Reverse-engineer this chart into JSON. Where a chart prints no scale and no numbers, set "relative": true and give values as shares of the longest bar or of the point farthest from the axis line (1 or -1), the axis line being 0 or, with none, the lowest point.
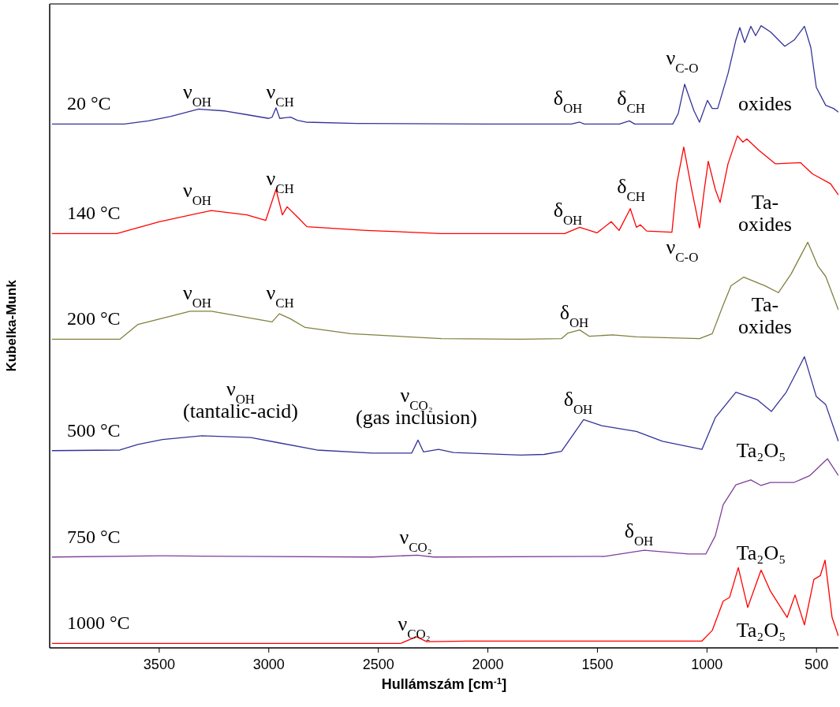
{
  "chart_data": {
    "type": "line",
    "relative": true,
    "xlabel": "Hullámszám [cm$^{-1}$]",
    "ylabel": "Kubelka-Munk",
    "xlim": [
      4000,
      400
    ],
    "xticks": [
      3500,
      3000,
      2500,
      2000,
      1500,
      1000,
      500
    ],
    "grid": false,
    "legend": false,
    "marker": "none",
    "line_style": "solid",
    "series": [
      {
        "name": "20 °C",
        "color": "#333399",
        "x": [
          3990,
          3660,
          3550,
          3450,
          3320,
          3200,
          3100,
          3000,
          2985,
          2967,
          2950,
          2925,
          2900,
          2870,
          2830,
          2600,
          2000,
          1620,
          1581,
          1560,
          1400,
          1354,
          1330,
          1156,
          1131,
          1102,
          1059,
          1034,
          998,
          976,
          951,
          904,
          868,
          850,
          828,
          800,
          778,
          753,
          710,
          645,
          602,
          555,
          526,
          501,
          458,
          422,
          400
        ],
        "values": [
          0.842,
          0.842,
          0.847,
          0.854,
          0.866,
          0.863,
          0.857,
          0.851,
          0.853,
          0.868,
          0.851,
          0.852,
          0.853,
          0.848,
          0.845,
          0.843,
          0.842,
          0.842,
          0.845,
          0.842,
          0.842,
          0.847,
          0.842,
          0.842,
          0.859,
          0.906,
          0.863,
          0.845,
          0.88,
          0.867,
          0.867,
          0.923,
          0.977,
          0.997,
          0.973,
          0.999,
          0.984,
          1.0,
          0.99,
          0.967,
          0.977,
          0.999,
          0.965,
          0.901,
          0.872,
          0.867,
          0.861
        ]
      },
      {
        "name": "140 °C",
        "color": "#ff0000",
        "x": [
          3990,
          3694,
          3500,
          3262,
          3100,
          3014,
          2967,
          2938,
          2916,
          2862,
          2826,
          2556,
          2211,
          1650,
          1581,
          1502,
          1437,
          1401,
          1350,
          1322,
          1304,
          1275,
          1160,
          1138,
          1106,
          1070,
          1034,
          1012,
          994,
          962,
          940,
          904,
          861,
          836,
          818,
          764,
          688,
          573,
          519,
          436,
          400
        ],
        "values": [
          0.666,
          0.666,
          0.685,
          0.703,
          0.696,
          0.687,
          0.737,
          0.696,
          0.709,
          0.69,
          0.677,
          0.671,
          0.666,
          0.666,
          0.676,
          0.667,
          0.685,
          0.671,
          0.706,
          0.676,
          0.68,
          0.67,
          0.668,
          0.746,
          0.805,
          0.737,
          0.675,
          0.737,
          0.782,
          0.737,
          0.716,
          0.778,
          0.823,
          0.813,
          0.818,
          0.8,
          0.778,
          0.78,
          0.762,
          0.746,
          0.728
        ]
      },
      {
        "name": "200 °C",
        "color": "#808040",
        "x": [
          3990,
          3680,
          3597,
          3359,
          3262,
          2985,
          2952,
          2902,
          2834,
          2625,
          2211,
          1851,
          1664,
          1635,
          1581,
          1538,
          1430,
          1322,
          1034,
          976,
          926,
          890,
          832,
          735,
          674,
          616,
          540,
          494,
          458,
          400
        ],
        "values": [
          0.496,
          0.496,
          0.52,
          0.541,
          0.541,
          0.524,
          0.537,
          0.529,
          0.515,
          0.505,
          0.497,
          0.496,
          0.497,
          0.506,
          0.511,
          0.501,
          0.503,
          0.5,
          0.497,
          0.505,
          0.551,
          0.582,
          0.596,
          0.582,
          0.571,
          0.601,
          0.652,
          0.614,
          0.597,
          0.543
        ]
      },
      {
        "name": "500 °C",
        "color": "#333399",
        "x": [
          3990,
          3680,
          3597,
          3485,
          3305,
          3082,
          2960,
          2780,
          2528,
          2348,
          2319,
          2294,
          2225,
          2157,
          1851,
          1743,
          1664,
          1563,
          1480,
          1322,
          1203,
          1023,
          962,
          868,
          771,
          706,
          638,
          555,
          501,
          458,
          400
        ],
        "values": [
          0.317,
          0.318,
          0.327,
          0.335,
          0.341,
          0.338,
          0.33,
          0.318,
          0.313,
          0.313,
          0.334,
          0.315,
          0.319,
          0.314,
          0.31,
          0.311,
          0.316,
          0.367,
          0.357,
          0.348,
          0.332,
          0.319,
          0.37,
          0.411,
          0.399,
          0.38,
          0.411,
          0.468,
          0.404,
          0.391,
          0.332
        ]
      },
      {
        "name": "750 °C",
        "color": "#7f3f98",
        "x": [
          3990,
          3485,
          3140,
          2528,
          2322,
          2247,
          1466,
          1286,
          1084,
          1005,
          962,
          926,
          868,
          800,
          753,
          710,
          602,
          530,
          450,
          400
        ],
        "values": [
          0.146,
          0.148,
          0.147,
          0.146,
          0.149,
          0.146,
          0.147,
          0.157,
          0.151,
          0.151,
          0.18,
          0.23,
          0.262,
          0.27,
          0.261,
          0.266,
          0.266,
          0.277,
          0.304,
          0.277
        ]
      },
      {
        "name": "1000 °C",
        "color": "#ff0000",
        "x": [
          3990,
          2400,
          2326,
          2279,
          2099,
          1934,
          1023,
          976,
          926,
          897,
          857,
          814,
          753,
          710,
          634,
          598,
          555,
          512,
          483,
          461,
          429,
          400
        ],
        "values": [
          0.007,
          0.007,
          0.018,
          0.01,
          0.011,
          0.011,
          0.011,
          0.028,
          0.075,
          0.081,
          0.129,
          0.065,
          0.125,
          0.091,
          0.049,
          0.085,
          0.037,
          0.11,
          0.116,
          0.141,
          0.049,
          0.019
        ]
      }
    ],
    "annotations": [
      "ν$_{OH}$",
      "ν$_{CH}$",
      "δ$_{OH}$",
      "δ$_{CH}$",
      "ν$_{C-O}$",
      "oxides",
      "ν$_{OH}$",
      "ν$_{CH}$",
      "δ$_{OH}$",
      "δ$_{CH}$",
      "ν$_{C-O}$",
      "Ta-\noxides",
      "ν$_{OH}$",
      "ν$_{CH}$",
      "δ$_{OH}$",
      "Ta-\noxides",
      "ν$_{OH}$\n(tantalic-acid)",
      "ν$_{CO₂}$\n(gas  inclusion)",
      "δ$_{OH}$",
      "Ta₂O₅",
      "ν$_{CO₂}$",
      "δ$_{OH}$",
      "Ta₂O₅",
      "ν$_{CO₂}$",
      "Ta₂O₅"
    ]
  }
}
